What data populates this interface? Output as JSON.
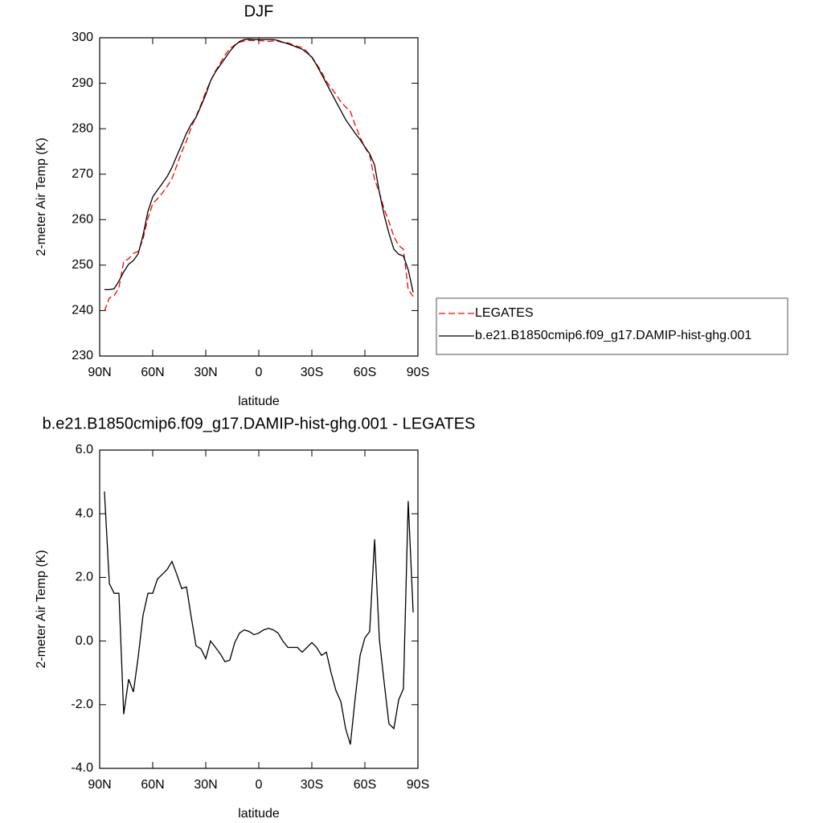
{
  "chart_data": [
    {
      "type": "line",
      "title": "DJF",
      "xlabel": "latitude",
      "ylabel": "2-meter Air Temp (K)",
      "x": [
        87.3,
        84.5,
        81.8,
        79.1,
        76.4,
        73.6,
        70.9,
        68.2,
        65.5,
        62.7,
        60.0,
        57.3,
        54.5,
        51.8,
        49.1,
        46.4,
        43.6,
        40.9,
        38.2,
        35.5,
        32.7,
        30.0,
        27.3,
        24.5,
        21.8,
        19.1,
        16.4,
        13.6,
        10.9,
        8.2,
        5.5,
        2.7,
        0.0,
        -2.7,
        -5.5,
        -8.2,
        -10.9,
        -13.6,
        -16.4,
        -19.1,
        -21.8,
        -24.5,
        -27.3,
        -30.0,
        -32.7,
        -35.5,
        -38.2,
        -40.9,
        -43.6,
        -46.4,
        -49.1,
        -51.8,
        -54.5,
        -57.3,
        -60.0,
        -62.7,
        -65.5,
        -68.2,
        -70.9,
        -73.6,
        -76.4,
        -79.1,
        -81.8,
        -84.5,
        -87.3
      ],
      "xlim": [
        90,
        -90
      ],
      "xticks": [
        {
          "value": 90,
          "label": "90N"
        },
        {
          "value": 60,
          "label": "60N"
        },
        {
          "value": 30,
          "label": "30N"
        },
        0,
        {
          "value": -30,
          "label": "30S"
        },
        {
          "value": -60,
          "label": "60S"
        },
        {
          "value": -90,
          "label": "90S"
        }
      ],
      "ylim": [
        230,
        300
      ],
      "yticks": [
        230,
        240,
        250,
        260,
        270,
        280,
        290,
        300
      ],
      "legend": "right",
      "series": [
        {
          "name": "LEGATES",
          "color": "#ff0000",
          "style": "dashed",
          "values": [
            239.9,
            242.8,
            243.3,
            245.0,
            250.8,
            251.4,
            252.6,
            253.0,
            255.7,
            260.3,
            263.5,
            264.6,
            265.9,
            267.3,
            269.0,
            271.9,
            274.9,
            277.3,
            280.3,
            282.7,
            285.3,
            288.1,
            290.5,
            292.7,
            294.4,
            296.2,
            297.6,
            298.4,
            299.0,
            299.3,
            299.4,
            299.4,
            299.4,
            299.3,
            299.2,
            299.3,
            299.2,
            299.0,
            298.9,
            298.5,
            298.1,
            297.9,
            296.9,
            295.8,
            294.2,
            292.5,
            290.4,
            289.0,
            287.6,
            285.9,
            284.8,
            283.8,
            280.8,
            278.1,
            275.9,
            274.2,
            268.8,
            266.0,
            262.3,
            259.6,
            256.3,
            254.3,
            253.5,
            244.6,
            243.1
          ]
        },
        {
          "name": "b.e21.B1850cmip6.f09_g17.DAMIP-hist-ghg.001",
          "color": "#000000",
          "style": "solid",
          "values": [
            244.6,
            244.6,
            244.8,
            246.5,
            248.5,
            250.2,
            251.0,
            252.5,
            256.5,
            261.8,
            265.0,
            266.5,
            268.0,
            269.5,
            271.5,
            274.0,
            276.5,
            279.0,
            281.0,
            282.5,
            285.0,
            287.5,
            290.5,
            292.5,
            294.0,
            295.5,
            297.0,
            298.3,
            299.2,
            299.6,
            299.7,
            299.6,
            299.6,
            299.6,
            299.6,
            299.6,
            299.4,
            299.0,
            298.7,
            298.3,
            297.9,
            297.5,
            296.7,
            295.7,
            294.0,
            292.0,
            290.0,
            288.0,
            286.0,
            284.0,
            282.0,
            280.5,
            279.0,
            277.6,
            276.0,
            274.5,
            272.0,
            266.0,
            261.0,
            257.0,
            253.5,
            252.4,
            252.0,
            249.0,
            244.0
          ]
        }
      ]
    },
    {
      "type": "line",
      "title": "b.e21.B1850cmip6.f09_g17.DAMIP-hist-ghg.001 - LEGATES",
      "xlabel": "latitude",
      "ylabel": "2-meter Air Temp (K)",
      "x": [
        87.3,
        84.5,
        81.8,
        79.1,
        76.4,
        73.6,
        70.9,
        68.2,
        65.5,
        62.7,
        60.0,
        57.3,
        54.5,
        51.8,
        49.1,
        46.4,
        43.6,
        40.9,
        38.2,
        35.5,
        32.7,
        30.0,
        27.3,
        24.5,
        21.8,
        19.1,
        16.4,
        13.6,
        10.9,
        8.2,
        5.5,
        2.7,
        0.0,
        -2.7,
        -5.5,
        -8.2,
        -10.9,
        -13.6,
        -16.4,
        -19.1,
        -21.8,
        -24.5,
        -27.3,
        -30.0,
        -32.7,
        -35.5,
        -38.2,
        -40.9,
        -43.6,
        -46.4,
        -49.1,
        -51.8,
        -54.5,
        -57.3,
        -60.0,
        -62.7,
        -65.5,
        -68.2,
        -70.9,
        -73.6,
        -76.4,
        -79.1,
        -81.8,
        -84.5,
        -87.3
      ],
      "xlim": [
        90,
        -90
      ],
      "xticks": [
        {
          "value": 90,
          "label": "90N"
        },
        {
          "value": 60,
          "label": "60N"
        },
        {
          "value": 30,
          "label": "30N"
        },
        0,
        {
          "value": -30,
          "label": "30S"
        },
        {
          "value": -60,
          "label": "60S"
        },
        {
          "value": -90,
          "label": "90S"
        }
      ],
      "ylim": [
        -4,
        6
      ],
      "yticks": [
        {
          "value": -4,
          "label": "-4.0"
        },
        {
          "value": -2,
          "label": "-2.0"
        },
        {
          "value": 0,
          "label": "0.0"
        },
        {
          "value": 2,
          "label": "2.0"
        },
        {
          "value": 4,
          "label": "4.0"
        },
        {
          "value": 6,
          "label": "6.0"
        }
      ],
      "color": "#000000",
      "values": [
        4.7,
        1.8,
        1.5,
        1.5,
        -2.3,
        -1.2,
        -1.6,
        -0.5,
        0.8,
        1.5,
        1.5,
        1.95,
        2.1,
        2.25,
        2.5,
        2.1,
        1.65,
        1.7,
        0.75,
        -0.15,
        -0.25,
        -0.55,
        0.0,
        -0.2,
        -0.4,
        -0.65,
        -0.6,
        -0.05,
        0.25,
        0.35,
        0.3,
        0.2,
        0.25,
        0.35,
        0.4,
        0.35,
        0.25,
        0.0,
        -0.2,
        -0.2,
        -0.2,
        -0.35,
        -0.2,
        -0.05,
        -0.2,
        -0.45,
        -0.35,
        -1.0,
        -1.55,
        -1.9,
        -2.75,
        -3.25,
        -1.8,
        -0.45,
        0.1,
        0.3,
        3.2,
        0.05,
        -1.3,
        -2.6,
        -2.75,
        -1.85,
        -1.5,
        4.4,
        0.9
      ]
    }
  ]
}
